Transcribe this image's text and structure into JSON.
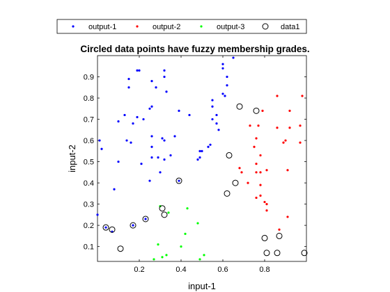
{
  "chart_data": {
    "type": "scatter",
    "title": "Circled data points have fuzzy membership grades.",
    "xlabel": "input-1",
    "ylabel": "input-2",
    "xlim": [
      0,
      1
    ],
    "ylim": [
      0.03,
      1.0
    ],
    "xticks": [
      0.2,
      0.4,
      0.6,
      0.8
    ],
    "yticks": [
      0.1,
      0.2,
      0.3,
      0.4,
      0.5,
      0.6,
      0.7,
      0.8,
      0.9
    ],
    "grid": false,
    "legend_position": "top-outside",
    "series": [
      {
        "name": "output-1",
        "color": "#0000ff",
        "marker": "dot",
        "points": [
          [
            0.15,
            0.89
          ],
          [
            0.15,
            0.85
          ],
          [
            0.19,
            0.93
          ],
          [
            0.32,
            0.93
          ],
          [
            0.32,
            0.9
          ],
          [
            0.33,
            0.83
          ],
          [
            0.26,
            0.88
          ],
          [
            0.28,
            0.85
          ],
          [
            0.26,
            0.76
          ],
          [
            0.25,
            0.75
          ],
          [
            0.22,
            0.7
          ],
          [
            0.19,
            0.71
          ],
          [
            0.13,
            0.72
          ],
          [
            0.1,
            0.69
          ],
          [
            0.17,
            0.68
          ],
          [
            0.14,
            0.6
          ],
          [
            0.16,
            0.59
          ],
          [
            0.26,
            0.62
          ],
          [
            0.26,
            0.57
          ],
          [
            0.26,
            0.52
          ],
          [
            0.31,
            0.61
          ],
          [
            0.32,
            0.6
          ],
          [
            0.37,
            0.62
          ],
          [
            0.35,
            0.53
          ],
          [
            0.32,
            0.51
          ],
          [
            0.29,
            0.52
          ],
          [
            0.21,
            0.49
          ],
          [
            0.25,
            0.41
          ],
          [
            0.3,
            0.45
          ],
          [
            0.1,
            0.5
          ],
          [
            0.02,
            0.56
          ],
          [
            0.01,
            0.6
          ],
          [
            0.08,
            0.37
          ],
          [
            0.39,
            0.41
          ],
          [
            0.44,
            0.72
          ],
          [
            0.5,
            0.55
          ],
          [
            0.49,
            0.55
          ],
          [
            0.49,
            0.52
          ],
          [
            0.55,
            0.79
          ],
          [
            0.55,
            0.76
          ],
          [
            0.55,
            0.7
          ],
          [
            0.57,
            0.68
          ],
          [
            0.58,
            0.65
          ],
          [
            0.6,
            0.96
          ],
          [
            0.6,
            0.94
          ],
          [
            0.62,
            0.9
          ],
          [
            0.62,
            0.86
          ],
          [
            0.61,
            0.81
          ],
          [
            0.57,
            0.72
          ],
          [
            0.54,
            0.58
          ],
          [
            0.53,
            0.57
          ],
          [
            0.65,
            0.99
          ],
          [
            0.48,
            0.51
          ],
          [
            0.04,
            0.19
          ],
          [
            0.07,
            0.17
          ],
          [
            0.17,
            0.2
          ],
          [
            0.23,
            0.23
          ],
          [
            0.0,
            0.25
          ],
          [
            0.2,
            0.93
          ],
          [
            0.39,
            0.74
          ],
          [
            0.6,
            0.82
          ]
        ]
      },
      {
        "name": "output-2",
        "color": "#ff0000",
        "marker": "dot",
        "points": [
          [
            0.86,
            0.81
          ],
          [
            0.92,
            0.74
          ],
          [
            0.98,
            0.81
          ],
          [
            0.79,
            0.74
          ],
          [
            0.73,
            0.67
          ],
          [
            0.77,
            0.67
          ],
          [
            0.76,
            0.61
          ],
          [
            0.86,
            0.66
          ],
          [
            0.92,
            0.66
          ],
          [
            0.97,
            0.67
          ],
          [
            0.9,
            0.6
          ],
          [
            0.89,
            0.59
          ],
          [
            0.78,
            0.53
          ],
          [
            0.76,
            0.49
          ],
          [
            0.76,
            0.45
          ],
          [
            0.78,
            0.45
          ],
          [
            0.81,
            0.46
          ],
          [
            0.91,
            0.46
          ],
          [
            0.78,
            0.39
          ],
          [
            0.69,
            0.45
          ],
          [
            0.72,
            0.4
          ],
          [
            0.78,
            0.34
          ],
          [
            0.8,
            0.31
          ],
          [
            0.81,
            0.3
          ],
          [
            0.81,
            0.27
          ],
          [
            0.76,
            0.33
          ],
          [
            0.91,
            0.24
          ],
          [
            0.87,
            0.18
          ],
          [
            0.97,
            0.59
          ],
          [
            0.75,
            0.57
          ],
          [
            0.68,
            0.47
          ]
        ]
      },
      {
        "name": "output-3",
        "color": "#00ff00",
        "marker": "dot",
        "points": [
          [
            0.43,
            0.28
          ],
          [
            0.48,
            0.21
          ],
          [
            0.42,
            0.16
          ],
          [
            0.33,
            0.06
          ],
          [
            0.4,
            0.1
          ],
          [
            0.27,
            0.04
          ],
          [
            0.31,
            0.05
          ],
          [
            0.29,
            0.11
          ],
          [
            0.49,
            0.04
          ],
          [
            0.51,
            0.06
          ],
          [
            0.3,
            0.29
          ],
          [
            0.34,
            0.26
          ]
        ]
      },
      {
        "name": "data1",
        "color": "#000000",
        "marker": "circle",
        "points": [
          [
            0.68,
            0.76
          ],
          [
            0.76,
            0.74
          ],
          [
            0.63,
            0.53
          ],
          [
            0.39,
            0.41
          ],
          [
            0.66,
            0.4
          ],
          [
            0.62,
            0.35
          ],
          [
            0.31,
            0.28
          ],
          [
            0.32,
            0.25
          ],
          [
            0.04,
            0.19
          ],
          [
            0.07,
            0.18
          ],
          [
            0.17,
            0.2
          ],
          [
            0.23,
            0.23
          ],
          [
            0.11,
            0.09
          ],
          [
            0.8,
            0.14
          ],
          [
            0.81,
            0.07
          ],
          [
            0.86,
            0.07
          ],
          [
            0.87,
            0.15
          ],
          [
            0.99,
            0.07
          ]
        ]
      }
    ]
  }
}
